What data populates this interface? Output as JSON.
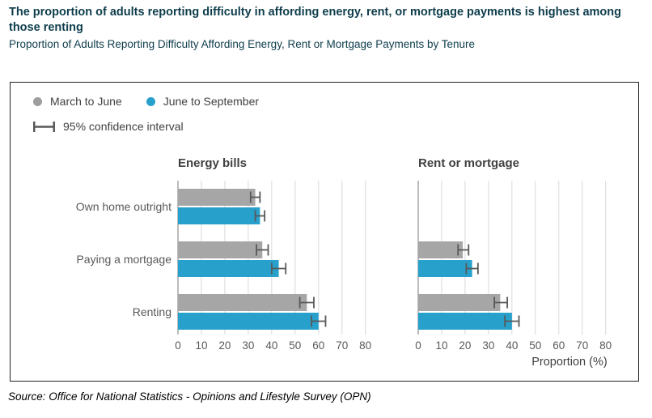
{
  "header": {
    "title": "The proportion of adults reporting difficulty in affording energy, rent, or mortgage payments is highest among those renting",
    "subtitle": "Proportion of Adults Reporting Difficulty Affording Energy, Rent or Mortgage Payments by Tenure"
  },
  "legend": {
    "series": [
      {
        "label": "March to June",
        "color": "#9d9d9d"
      },
      {
        "label": "June to September",
        "color": "#27a0cc"
      }
    ],
    "ci_label": "95% confidence interval",
    "ci_color": "#595959"
  },
  "chart_data": {
    "type": "bar",
    "orientation": "horizontal",
    "categories": [
      "Own home outright",
      "Paying a mortgage",
      "Renting"
    ],
    "xlabel": "Proportion (%)",
    "xlim": [
      0,
      80
    ],
    "xticks": [
      0,
      10,
      20,
      30,
      40,
      50,
      60,
      70,
      80
    ],
    "grid": true,
    "legend_position": "top-left",
    "panels": [
      {
        "title": "Energy bills",
        "series": [
          {
            "name": "March to June",
            "color": "#a6a6a6",
            "values": [
              33,
              36,
              55
            ],
            "ci_low": [
              31,
              33.5,
              52
            ],
            "ci_high": [
              35,
              38.5,
              58
            ]
          },
          {
            "name": "June to September",
            "color": "#27a0cc",
            "values": [
              35,
              43,
              60
            ],
            "ci_low": [
              33,
              40,
              57
            ],
            "ci_high": [
              37,
              46,
              63
            ]
          }
        ]
      },
      {
        "title": "Rent or mortgage",
        "series": [
          {
            "name": "March to June",
            "color": "#a6a6a6",
            "values": [
              null,
              19,
              35
            ],
            "ci_low": [
              null,
              17,
              32.5
            ],
            "ci_high": [
              null,
              21.5,
              38
            ]
          },
          {
            "name": "June to September",
            "color": "#27a0cc",
            "values": [
              null,
              23,
              40
            ],
            "ci_low": [
              null,
              20.5,
              37
            ],
            "ci_high": [
              null,
              25.5,
              43
            ]
          }
        ]
      }
    ],
    "colors": {
      "gridline": "#d9d9d9",
      "axis_line": "#a6a6a6",
      "error_bar": "#595959",
      "tick_label": "#595959",
      "category_label": "#595959",
      "panel_title": "#414042",
      "axis_title": "#414042"
    }
  },
  "source": "Source: Office for National Statistics - Opinions and Lifestyle Survey (OPN)"
}
